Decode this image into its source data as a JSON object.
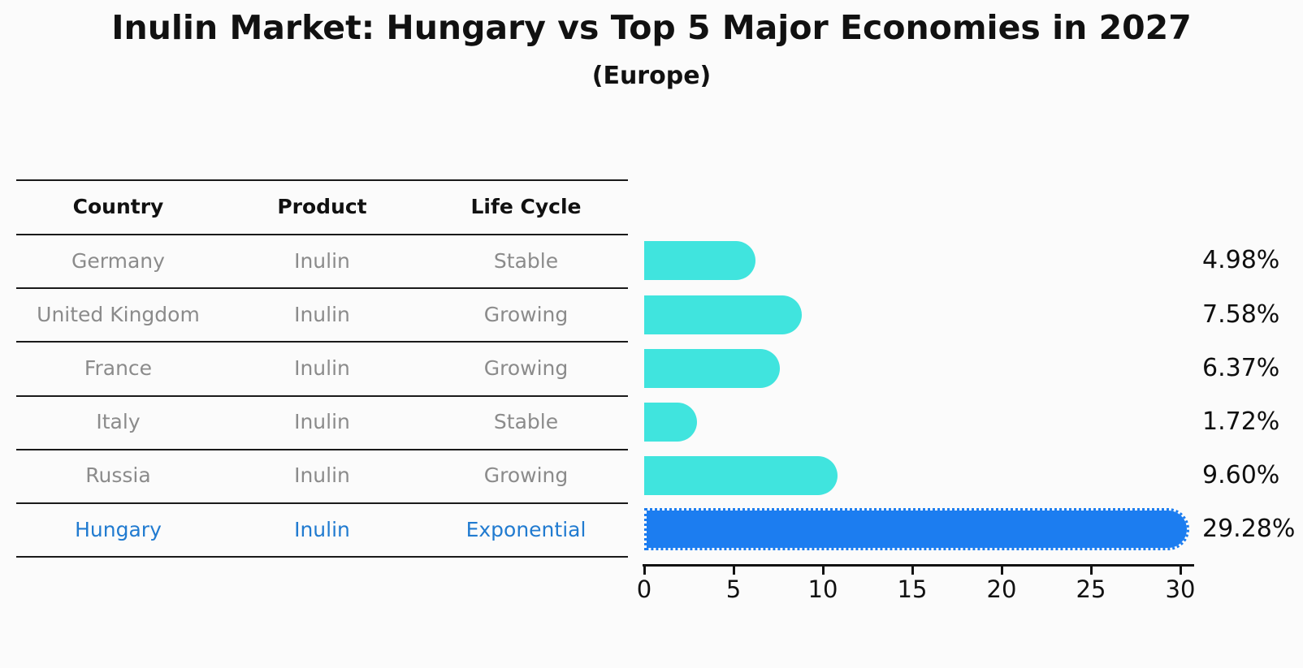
{
  "header": {
    "title": "Inulin Market: Hungary vs Top 5 Major Economies in 2027",
    "subtitle": "(Europe)"
  },
  "table": {
    "columns": [
      "Country",
      "Product",
      "Life Cycle"
    ],
    "rows": [
      {
        "country": "Germany",
        "product": "Inulin",
        "life_cycle": "Stable",
        "highlight": false
      },
      {
        "country": "United Kingdom",
        "product": "Inulin",
        "life_cycle": "Growing",
        "highlight": false
      },
      {
        "country": "France",
        "product": "Inulin",
        "life_cycle": "Growing",
        "highlight": false
      },
      {
        "country": "Italy",
        "product": "Inulin",
        "life_cycle": "Stable",
        "highlight": false
      },
      {
        "country": "Russia",
        "product": "Inulin",
        "life_cycle": "Growing",
        "highlight": false
      },
      {
        "country": "Hungary",
        "product": "Inulin",
        "life_cycle": "Exponential",
        "highlight": true
      }
    ]
  },
  "chart_data": {
    "type": "bar",
    "orientation": "horizontal",
    "title": "Inulin Market: Hungary vs Top 5 Major Economies in 2027",
    "subtitle": "(Europe)",
    "categories": [
      "Germany",
      "United Kingdom",
      "France",
      "Italy",
      "Russia",
      "Hungary"
    ],
    "values": [
      4.98,
      7.58,
      6.37,
      1.72,
      9.6,
      29.28
    ],
    "value_labels": [
      "4.98%",
      "7.58%",
      "6.37%",
      "1.72%",
      "9.60%",
      "29.28%"
    ],
    "xlim": [
      0,
      30
    ],
    "xticks": [
      0,
      5,
      10,
      15,
      20,
      25,
      30
    ],
    "grid": false,
    "legend": false,
    "highlight_index": 5,
    "bar_color": "#40E4DE",
    "highlight_bar_color": "#1C7DF0",
    "highlight_bar_style": "dotted-edge",
    "highlight_text_color": "#217BD0",
    "row_text_color": "#8B8B8B"
  }
}
